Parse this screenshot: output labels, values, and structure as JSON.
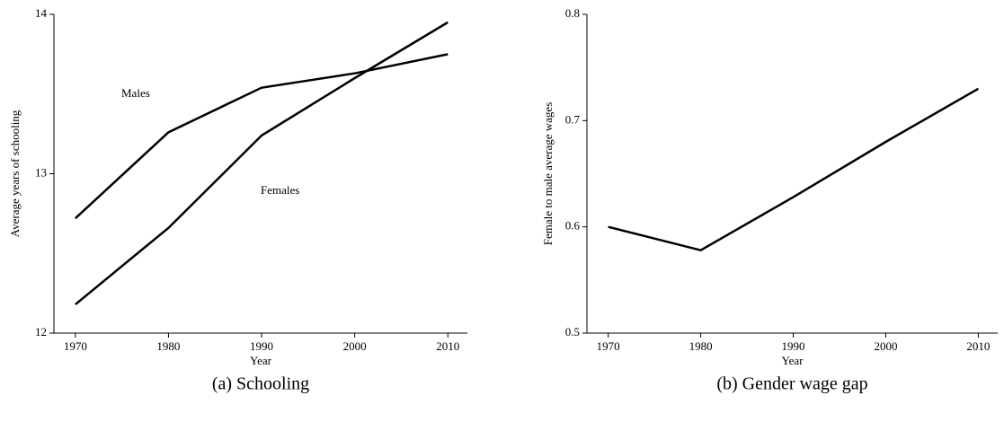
{
  "chart_data": [
    {
      "type": "line",
      "caption": "(a) Schooling",
      "x_label": "Year",
      "y_label": "Average years of schooling",
      "x": [
        1970,
        1980,
        1990,
        2000,
        2010
      ],
      "series": [
        {
          "name": "Males",
          "color": "#000000",
          "values": [
            12.72,
            13.26,
            13.54,
            13.63,
            13.75
          ]
        },
        {
          "name": "Females",
          "color": "#000000",
          "values": [
            12.18,
            12.66,
            13.24,
            13.6,
            13.95
          ]
        }
      ],
      "xlim": [
        1967.7,
        2012.1
      ],
      "xticks": [
        1970,
        1980,
        1990,
        2000,
        2010
      ],
      "ylim": [
        12,
        14
      ],
      "yticks": [
        12,
        13,
        14
      ]
    },
    {
      "type": "line",
      "caption": "(b) Gender wage gap",
      "x_label": "Year",
      "y_label": "Female to male average wages",
      "x": [
        1970,
        1980,
        1990,
        2000,
        2010
      ],
      "values": [
        0.6,
        0.578,
        0.628,
        0.68,
        0.73
      ],
      "color": "#000000",
      "xlim": [
        1967.7,
        2012.1
      ],
      "xticks": [
        1970,
        1980,
        1990,
        2000,
        2010
      ],
      "ylim": [
        0.5,
        0.8
      ],
      "yticks": [
        0.5,
        0.6,
        0.7,
        0.8
      ]
    }
  ]
}
